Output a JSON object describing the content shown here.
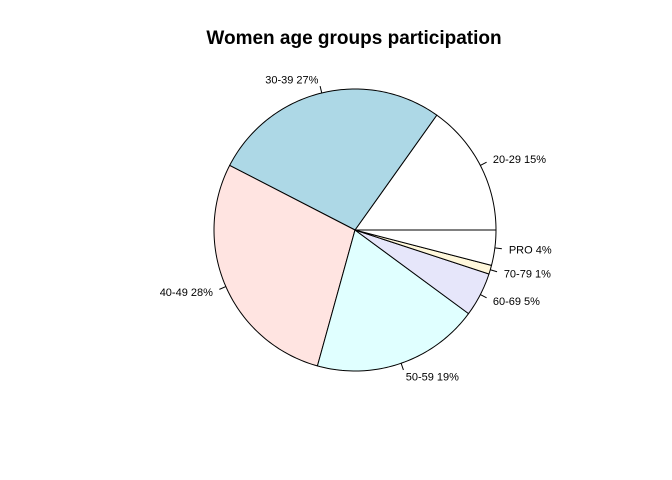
{
  "chart_data": {
    "type": "pie",
    "title": "Women age groups participation",
    "start_angle_deg": 0,
    "direction": "counterclockwise",
    "slices": [
      {
        "label": "20-29 15%",
        "value": 15,
        "color": "#ffffff"
      },
      {
        "label": "30-39 27%",
        "value": 27,
        "color": "#add8e6"
      },
      {
        "label": "40-49 28%",
        "value": 28,
        "color": "#ffe4e1"
      },
      {
        "label": "50-59 19%",
        "value": 19,
        "color": "#e0ffff"
      },
      {
        "label": "60-69 5%",
        "value": 5,
        "color": "#e6e6fa"
      },
      {
        "label": "70-79 1%",
        "value": 1,
        "color": "#fff8dc"
      },
      {
        "label": "PRO 4%",
        "value": 4,
        "color": "#ffffff"
      }
    ]
  }
}
